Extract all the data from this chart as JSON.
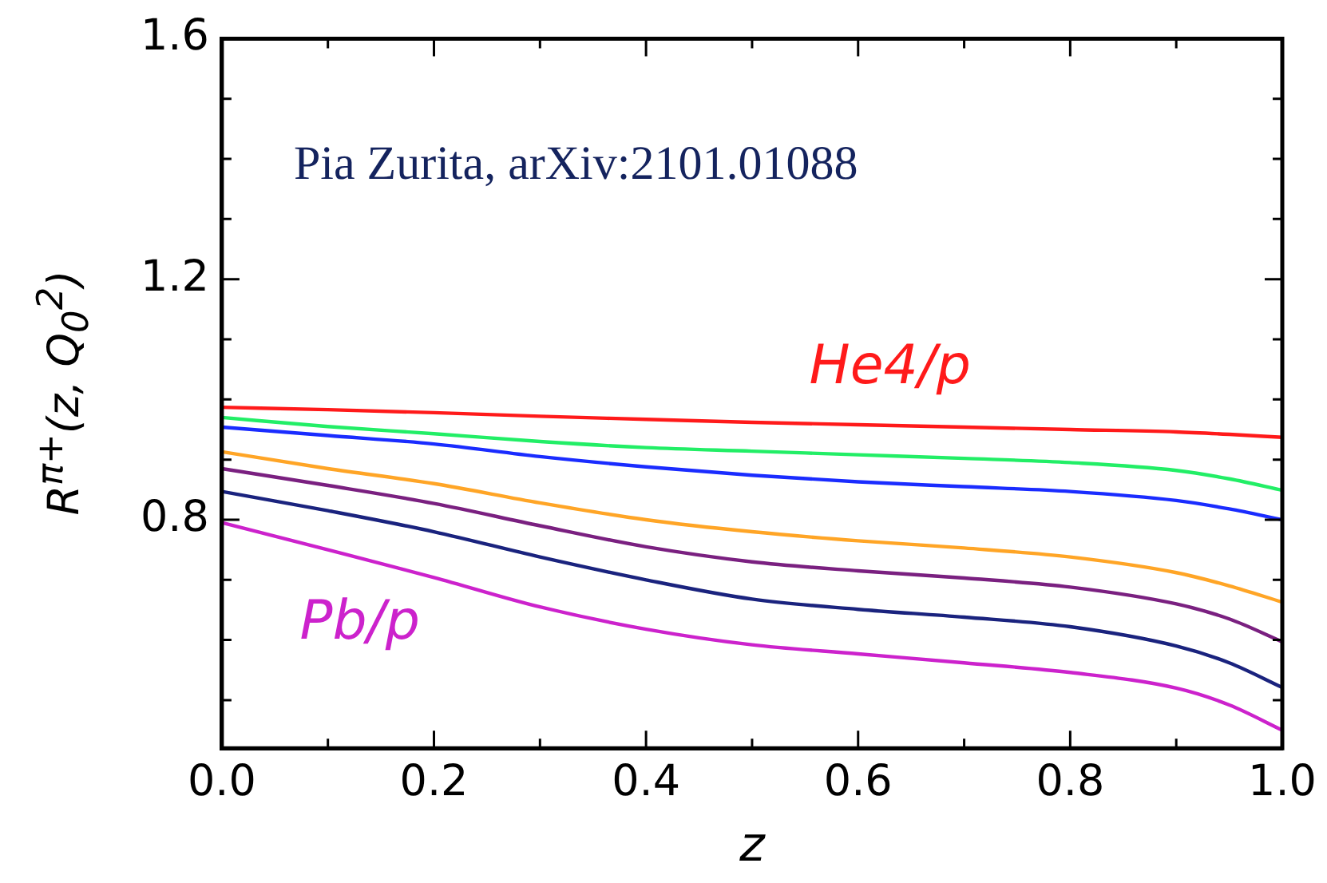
{
  "chart_data": {
    "type": "line",
    "ylabel": "R$^{π+}$(z, Q$_{0}$$^{2}$)",
    "xlabel": "z",
    "annotations": [
      "Pia Zurita, arXiv:2101.01088"
    ],
    "x": [
      0,
      0.1,
      0.2,
      0.3,
      0.4,
      0.5,
      0.6,
      0.7,
      0.8,
      0.9,
      0.95,
      1
    ],
    "series": [
      {
        "name": "He4/p",
        "color": "#ff1a1a",
        "values": [
          0.987,
          0.983,
          0.978,
          0.972,
          0.967,
          0.962,
          0.958,
          0.954,
          0.95,
          0.946,
          0.942,
          0.937
        ]
      },
      {
        "color": "#22ee66",
        "values": [
          0.97,
          0.955,
          0.943,
          0.93,
          0.92,
          0.914,
          0.908,
          0.902,
          0.895,
          0.882,
          0.868,
          0.849
        ]
      },
      {
        "color": "#1a2cff",
        "values": [
          0.954,
          0.94,
          0.926,
          0.905,
          0.888,
          0.874,
          0.863,
          0.855,
          0.847,
          0.832,
          0.818,
          0.8
        ]
      },
      {
        "color": "#ffa526",
        "values": [
          0.913,
          0.885,
          0.86,
          0.828,
          0.8,
          0.78,
          0.765,
          0.753,
          0.738,
          0.712,
          0.69,
          0.663
        ]
      },
      {
        "color": "#7a2080",
        "values": [
          0.885,
          0.857,
          0.827,
          0.79,
          0.755,
          0.73,
          0.715,
          0.703,
          0.688,
          0.66,
          0.635,
          0.597
        ]
      },
      {
        "color": "#1a237e",
        "values": [
          0.847,
          0.815,
          0.78,
          0.738,
          0.7,
          0.668,
          0.651,
          0.638,
          0.622,
          0.59,
          0.562,
          0.521
        ]
      },
      {
        "name": "Pb/p",
        "color": "#cc22cc",
        "values": [
          0.795,
          0.75,
          0.704,
          0.655,
          0.618,
          0.592,
          0.577,
          0.562,
          0.546,
          0.52,
          0.492,
          0.45
        ]
      }
    ],
    "xlim": [
      0,
      1
    ],
    "ylim": [
      0.42,
      1.6
    ],
    "xticks": [
      {
        "value": 0,
        "label": "0.0"
      },
      {
        "value": 0.1,
        "label": null
      },
      0.2,
      {
        "value": 0.3,
        "label": null
      },
      0.4,
      {
        "value": 0.5,
        "label": null
      },
      0.6,
      {
        "value": 0.7,
        "label": null
      },
      0.8,
      {
        "value": 0.9,
        "label": null
      },
      {
        "value": 1,
        "label": "1.0"
      }
    ],
    "yticks": [
      {
        "value": 0.5,
        "label": null
      },
      {
        "value": 0.6,
        "label": null
      },
      {
        "value": 0.7,
        "label": null
      },
      0.8,
      {
        "value": 0.9,
        "label": null
      },
      {
        "value": 1.0,
        "label": null
      },
      {
        "value": 1.1,
        "label": null
      },
      1.2,
      {
        "value": 1.3,
        "label": null
      },
      {
        "value": 1.4,
        "label": null
      },
      {
        "value": 1.5,
        "label": null
      },
      1.6
    ],
    "grid": false,
    "legend": false,
    "marker": "none",
    "line_style": "solid"
  }
}
